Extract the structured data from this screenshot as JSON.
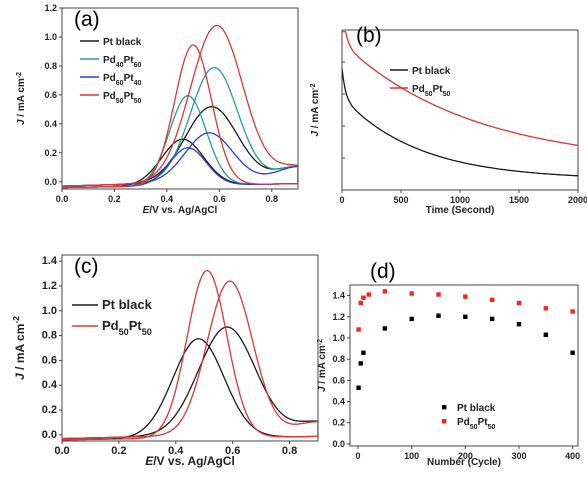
{
  "chart_data": [
    {
      "id": "a",
      "panel_label": "(a)",
      "type": "line",
      "xlabel": {
        "pre": "",
        "ital": "E",
        "post": "/V vs. Ag/AgCl"
      },
      "ylabel": {
        "ital": "J",
        "main": " / mA cm",
        "sup": "-2"
      },
      "xlim": [
        0.0,
        0.9
      ],
      "ylim": [
        -0.05,
        1.2
      ],
      "xticks": [
        "0.0",
        "0.2",
        "0.4",
        "0.6",
        "0.8"
      ],
      "yticks": [
        "0.0",
        "0.2",
        "0.4",
        "0.6",
        "0.8",
        "1.0",
        "1.2"
      ],
      "series": [
        {
          "name_parts": [
            [
              "Pt black",
              ""
            ]
          ],
          "color": "#1a1a1a",
          "fwd_peak": 0.57,
          "fwd_height": 0.52,
          "fwd_width": 0.1,
          "rev_peak": 0.46,
          "rev_height": 0.32,
          "rev_width": 0.08
        },
        {
          "name_parts": [
            [
              "Pd",
              ""
            ],
            [
              "40",
              "sub"
            ],
            [
              "Pt",
              ""
            ],
            [
              "60",
              "sub"
            ]
          ],
          "color": "#2a9d8f",
          "fwd_peak": 0.58,
          "fwd_height": 0.79,
          "fwd_width": 0.09,
          "rev_peak": 0.48,
          "rev_height": 0.62,
          "rev_width": 0.07
        },
        {
          "name_parts": [
            [
              "Pd",
              ""
            ],
            [
              "60",
              "sub"
            ],
            [
              "Pt",
              ""
            ],
            [
              "40",
              "sub"
            ]
          ],
          "color": "#2a3fd8",
          "fwd_peak": 0.56,
          "fwd_height": 0.34,
          "fwd_width": 0.09,
          "rev_peak": 0.48,
          "rev_height": 0.26,
          "rev_width": 0.07
        },
        {
          "name_parts": [
            [
              "Pd",
              ""
            ],
            [
              "50",
              "sub"
            ],
            [
              "Pt",
              ""
            ],
            [
              "50",
              "sub"
            ]
          ],
          "color": "#e03535",
          "fwd_peak": 0.59,
          "fwd_height": 1.08,
          "fwd_width": 0.1,
          "rev_peak": 0.5,
          "rev_height": 0.97,
          "rev_width": 0.07
        }
      ],
      "legend": "top-left"
    },
    {
      "id": "b",
      "panel_label": "(b)",
      "type": "line",
      "xlabel": {
        "pre": "Time (Second)",
        "ital": "",
        "post": ""
      },
      "ylabel": {
        "ital": "J",
        "main": " / mA cm",
        "sup": "-2"
      },
      "xlim": [
        0,
        2000
      ],
      "ylim": [
        0.0,
        1.0
      ],
      "xticks": [
        "0",
        "500",
        "1000",
        "1500",
        "2000"
      ],
      "series": [
        {
          "name_parts": [
            [
              "Pt black",
              ""
            ]
          ],
          "color": "#1a1a1a",
          "start": 0.58,
          "end": 0.065,
          "decay": 650
        },
        {
          "name_parts": [
            [
              "Pd",
              ""
            ],
            [
              "50",
              "sub"
            ],
            [
              "Pt",
              ""
            ],
            [
              "50",
              "sub"
            ]
          ],
          "color": "#e03535",
          "start": 0.92,
          "end": 0.155,
          "decay": 1100
        }
      ],
      "legend": "top-center"
    },
    {
      "id": "c",
      "panel_label": "(c)",
      "type": "line",
      "xlabel": {
        "pre": "",
        "ital": "E",
        "post": "/V vs. Ag/AgCl"
      },
      "ylabel": {
        "ital": "J",
        "main": " / mA cm",
        "sup": "-2"
      },
      "xlim": [
        0.0,
        0.9
      ],
      "ylim": [
        -0.05,
        1.45
      ],
      "xticks": [
        "0.0",
        "0.2",
        "0.4",
        "0.6",
        "0.8"
      ],
      "yticks": [
        "0.0",
        "0.2",
        "0.4",
        "0.6",
        "0.8",
        "1.0",
        "1.2",
        "1.4"
      ],
      "series": [
        {
          "name_parts": [
            [
              "Pt black",
              ""
            ]
          ],
          "color": "#1a1a1a",
          "fwd_peak": 0.58,
          "fwd_height": 0.87,
          "fwd_width": 0.1,
          "rev_peak": 0.48,
          "rev_height": 0.8,
          "rev_width": 0.09
        },
        {
          "name_parts": [
            [
              "Pd",
              ""
            ],
            [
              "50",
              "sub"
            ],
            [
              "Pt",
              ""
            ],
            [
              "50",
              "sub"
            ]
          ],
          "color": "#e03535",
          "fwd_peak": 0.59,
          "fwd_height": 1.24,
          "fwd_width": 0.08,
          "rev_peak": 0.51,
          "rev_height": 1.35,
          "rev_width": 0.07
        }
      ],
      "legend": "top-left"
    },
    {
      "id": "d",
      "panel_label": "(d)",
      "type": "scatter",
      "xlabel": {
        "pre": "Number (Cycle)",
        "ital": "",
        "post": ""
      },
      "ylabel": {
        "ital": "J",
        "main": " / mA cm",
        "sup": "-2"
      },
      "xlim": [
        -15,
        410
      ],
      "ylim": [
        -0.02,
        1.5
      ],
      "xticks": [
        "0",
        "100",
        "200",
        "300",
        "400"
      ],
      "yticks": [
        "0.0",
        "0.2",
        "0.4",
        "0.6",
        "0.8",
        "1.0",
        "1.2",
        "1.4"
      ],
      "series": [
        {
          "name_parts": [
            [
              "Pt black",
              ""
            ]
          ],
          "color": "#000000",
          "x": [
            1,
            5,
            10,
            50,
            100,
            150,
            200,
            250,
            300,
            350,
            400
          ],
          "y": [
            0.53,
            0.76,
            0.86,
            1.09,
            1.18,
            1.21,
            1.2,
            1.18,
            1.13,
            1.03,
            0.86
          ]
        },
        {
          "name_parts": [
            [
              "Pd",
              ""
            ],
            [
              "50",
              "sub"
            ],
            [
              "Pt",
              ""
            ],
            [
              "50",
              "sub"
            ]
          ],
          "color": "#ff2020",
          "x": [
            1,
            5,
            10,
            20,
            50,
            100,
            150,
            200,
            250,
            300,
            350,
            400
          ],
          "y": [
            1.08,
            1.33,
            1.38,
            1.41,
            1.44,
            1.42,
            1.41,
            1.39,
            1.36,
            1.33,
            1.28,
            1.25
          ]
        }
      ],
      "legend": "bottom-right"
    }
  ]
}
